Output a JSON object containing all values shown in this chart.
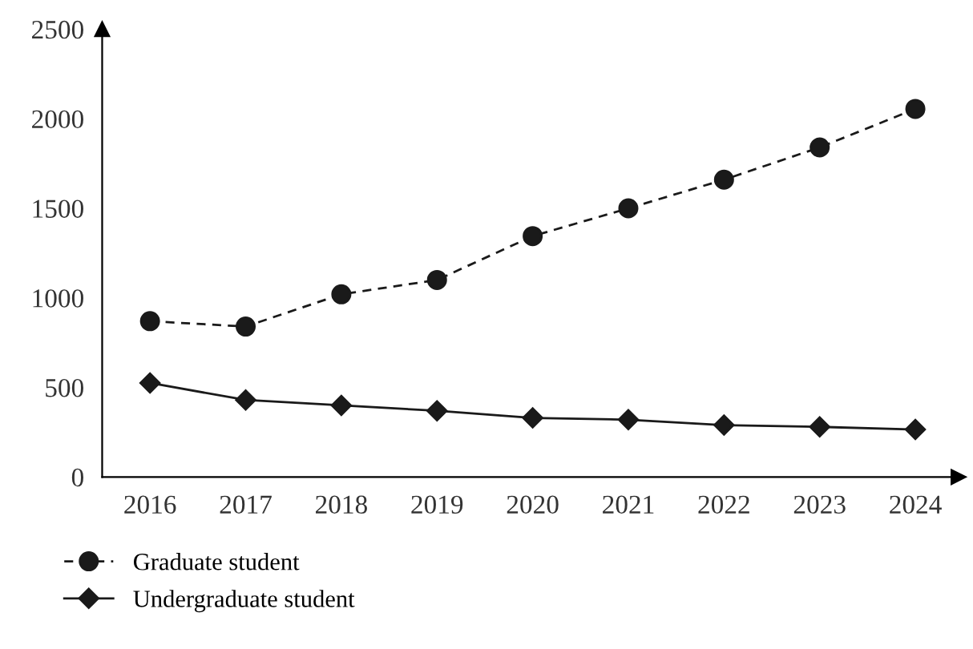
{
  "chart_data": {
    "type": "line",
    "categories": [
      "2016",
      "2017",
      "2018",
      "2019",
      "2020",
      "2021",
      "2022",
      "2023",
      "2024"
    ],
    "series": [
      {
        "name": "Graduate student",
        "color": "#1a1a1a",
        "marker": "circle",
        "line_style": "dashed",
        "values": [
          870,
          840,
          1020,
          1100,
          1345,
          1500,
          1660,
          1840,
          2055
        ]
      },
      {
        "name": "Undergraduate student",
        "color": "#1a1a1a",
        "marker": "diamond",
        "line_style": "solid",
        "values": [
          525,
          430,
          400,
          370,
          330,
          320,
          290,
          280,
          265
        ]
      }
    ],
    "ylim": [
      0,
      2500
    ],
    "yticks": [
      0,
      500,
      1000,
      1500,
      2000,
      2500
    ],
    "grid": false,
    "legend": "bottom left"
  }
}
